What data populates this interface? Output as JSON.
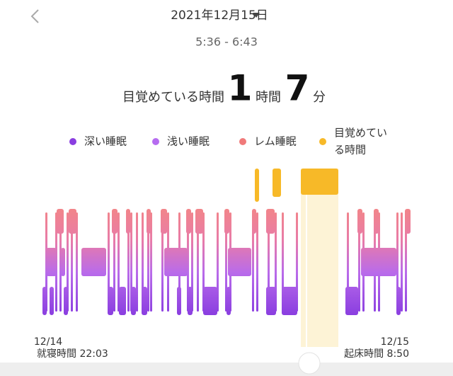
{
  "header": {
    "date": "2021年12月15日",
    "time_range": "5:36 - 6:43"
  },
  "summary": {
    "label": "目覚めている時間",
    "hours": "1",
    "hours_unit": "時間",
    "minutes": "7",
    "minutes_unit": "分"
  },
  "legend": [
    {
      "lines": [
        "深い睡眠"
      ],
      "color": "#8a3ee0"
    },
    {
      "lines": [
        "浅い睡眠"
      ],
      "color": "#b66cf0"
    },
    {
      "lines": [
        "レム睡眠"
      ],
      "color": "#f07a7a"
    },
    {
      "lines": [
        "目覚めてい",
        "る時間"
      ],
      "color": "#f7b928"
    }
  ],
  "timeline": {
    "start_date": "12/14",
    "start_label": "就寝時間 22:03",
    "end_date": "12/15",
    "end_label": "起床時間 8:50"
  }
}
